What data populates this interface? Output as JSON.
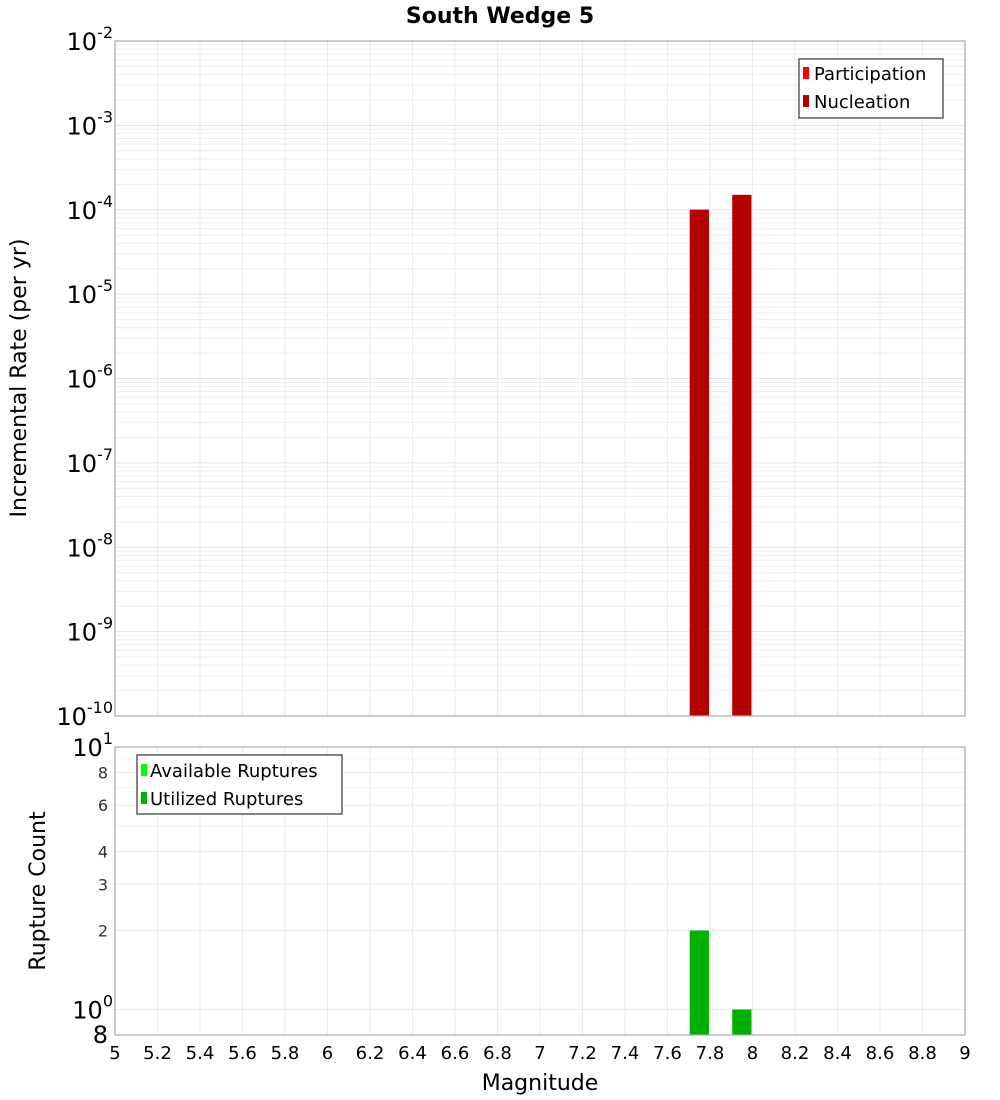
{
  "chart_data": [
    {
      "type": "bar",
      "title": "South Wedge 5",
      "xlabel": "Magnitude",
      "ylabel": "Incremental Rate (per yr)",
      "yscale": "log",
      "ylim": [
        1e-10,
        0.01
      ],
      "xlim": [
        5,
        9
      ],
      "grid": true,
      "legend_position": "upper right",
      "legend": [
        {
          "label": "Participation",
          "color": "#ff0000"
        },
        {
          "label": "Nucleation",
          "color": "#b30000"
        }
      ],
      "y_tick_labels": [
        {
          "base": "10",
          "exp": "-2",
          "value": 0.01
        },
        {
          "base": "10",
          "exp": "-3",
          "value": 0.001
        },
        {
          "base": "10",
          "exp": "-4",
          "value": 0.0001
        },
        {
          "base": "10",
          "exp": "-5",
          "value": 1e-05
        },
        {
          "base": "10",
          "exp": "-6",
          "value": 1e-06
        },
        {
          "base": "10",
          "exp": "-7",
          "value": 1e-07
        },
        {
          "base": "10",
          "exp": "-8",
          "value": 1e-08
        },
        {
          "base": "10",
          "exp": "-9",
          "value": 1e-09
        },
        {
          "base": "10",
          "exp": "-10",
          "value": 1e-10
        }
      ],
      "series": [
        {
          "name": "Participation",
          "color": "#ff0000",
          "x": [
            7.75,
            7.95
          ],
          "values": [
            0.0001,
            0.00015
          ]
        },
        {
          "name": "Nucleation",
          "color": "#b30000",
          "x": [
            7.75,
            7.95
          ],
          "values": [
            0.0001,
            0.00015
          ]
        }
      ]
    },
    {
      "type": "bar",
      "title": "",
      "xlabel": "Magnitude",
      "ylabel": "Rupture Count",
      "yscale": "log",
      "ylim": [
        0.8,
        10
      ],
      "xlim": [
        5,
        9
      ],
      "grid": true,
      "legend_position": "upper left",
      "legend": [
        {
          "label": "Available Ruptures",
          "color": "#00ff00"
        },
        {
          "label": "Utilized Ruptures",
          "color": "#00b000"
        }
      ],
      "y_tick_labels": [
        {
          "text": "10",
          "exp": "1",
          "value": 10,
          "major": true
        },
        {
          "text": "8",
          "value": 8
        },
        {
          "text": "6",
          "value": 6
        },
        {
          "text": "4",
          "value": 4
        },
        {
          "text": "3",
          "value": 3
        },
        {
          "text": "2",
          "value": 2
        },
        {
          "text": "10",
          "exp": "0",
          "value": 1,
          "major": true
        },
        {
          "text": "8",
          "value": 0.8,
          "major": true
        }
      ],
      "series": [
        {
          "name": "Available Ruptures",
          "color": "#00ff00",
          "x": [
            7.75,
            7.95
          ],
          "values": [
            2,
            1
          ]
        },
        {
          "name": "Utilized Ruptures",
          "color": "#00b000",
          "x": [
            7.75,
            7.95
          ],
          "values": [
            2,
            1
          ]
        }
      ]
    }
  ],
  "x_tick_labels": [
    "5",
    "5.2",
    "5.4",
    "5.6",
    "5.8",
    "6",
    "6.2",
    "6.4",
    "6.6",
    "6.8",
    "7",
    "7.2",
    "7.4",
    "7.6",
    "7.8",
    "8",
    "8.2",
    "8.4",
    "8.6",
    "8.8",
    "9"
  ],
  "bar_width": 0.09
}
